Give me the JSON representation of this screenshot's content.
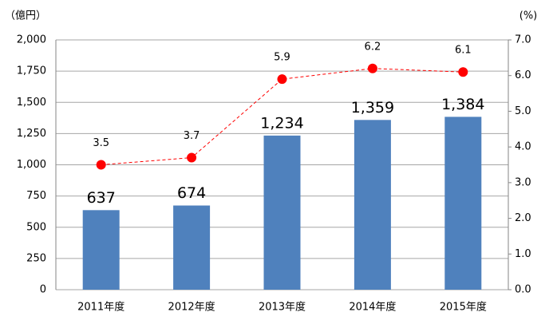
{
  "chart_data": {
    "type": "bar",
    "y_label": "（億円）",
    "y2_label": "(%)",
    "categories": [
      "2011年度",
      "2012年度",
      "2013年度",
      "2014年度",
      "2015年度"
    ],
    "series": [
      {
        "type": "bar",
        "color": "#4f81bd",
        "values": [
          637,
          674,
          1234,
          1359,
          1384
        ],
        "value_labels": [
          "637",
          "674",
          "1,234",
          "1,359",
          "1,384"
        ]
      },
      {
        "type": "line",
        "axis": "y2",
        "color": "#ff0000",
        "values": [
          3.5,
          3.7,
          5.9,
          6.2,
          6.1
        ]
      }
    ],
    "ylim": [
      0,
      2000
    ],
    "yticks": [
      0,
      250,
      500,
      750,
      {
        "value": 1000,
        "label": "1,000"
      },
      {
        "value": 1250,
        "label": "1,250"
      },
      {
        "value": 1500,
        "label": "1,500"
      },
      {
        "value": 1750,
        "label": "1,750"
      },
      {
        "value": 2000,
        "label": "2,000"
      }
    ],
    "y2lim": [
      0,
      7
    ],
    "y2ticks": [
      {
        "value": 0,
        "label": "0.0"
      },
      {
        "value": 1,
        "label": "1.0"
      },
      {
        "value": 2,
        "label": "2.0"
      },
      {
        "value": 3,
        "label": "3.0"
      },
      {
        "value": 4,
        "label": "4.0"
      },
      {
        "value": 5,
        "label": "5.0"
      },
      {
        "value": 6,
        "label": "6.0"
      },
      {
        "value": 7,
        "label": "7.0"
      }
    ],
    "grid": true
  }
}
